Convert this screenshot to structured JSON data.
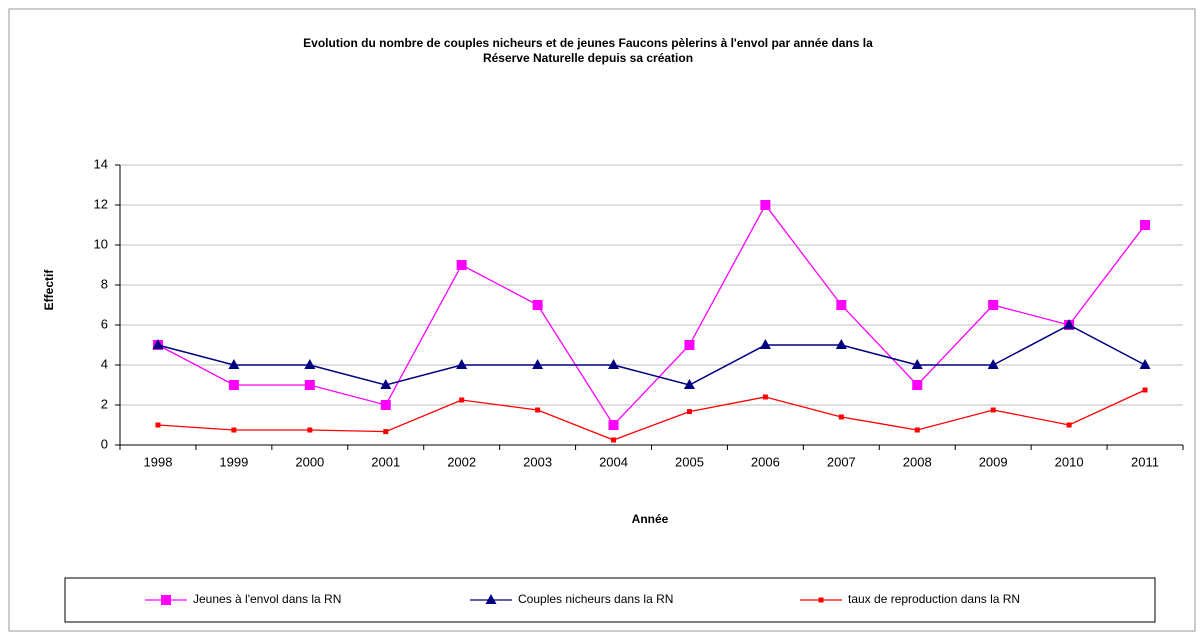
{
  "chart_data": {
    "type": "line",
    "title": [
      "Evolution du nombre de couples nicheurs et de jeunes Faucons pèlerins à l'envol par année dans la",
      "Réserve Naturelle depuis sa création"
    ],
    "x_label": "Année",
    "y_label": "Effectif",
    "categories": [
      "1998",
      "1999",
      "2000",
      "2001",
      "2002",
      "2003",
      "2004",
      "2005",
      "2006",
      "2007",
      "2008",
      "2009",
      "2010",
      "2011"
    ],
    "series": [
      {
        "name": "Jeunes à l'envol dans la RN",
        "color": "#ff00ff",
        "marker": "square",
        "values": [
          5,
          3,
          3,
          2,
          9,
          7,
          1,
          5,
          12,
          7,
          3,
          7,
          6,
          11
        ]
      },
      {
        "name": "Couples nicheurs dans la RN",
        "color": "#000080",
        "marker": "triangle",
        "values": [
          5,
          4,
          4,
          3,
          4,
          4,
          4,
          3,
          5,
          5,
          4,
          4,
          6,
          4
        ]
      },
      {
        "name": "taux de reproduction dans la RN",
        "color": "#ff0000",
        "marker": "dot",
        "values": [
          1,
          0.75,
          0.75,
          0.67,
          2.25,
          1.75,
          0.25,
          1.67,
          2.4,
          1.4,
          0.75,
          1.75,
          1,
          2.75
        ]
      }
    ],
    "ylim": [
      0,
      14
    ],
    "yticks": [
      0,
      2,
      4,
      6,
      8,
      10,
      12,
      14
    ],
    "grid": true,
    "legend": "bottom"
  }
}
